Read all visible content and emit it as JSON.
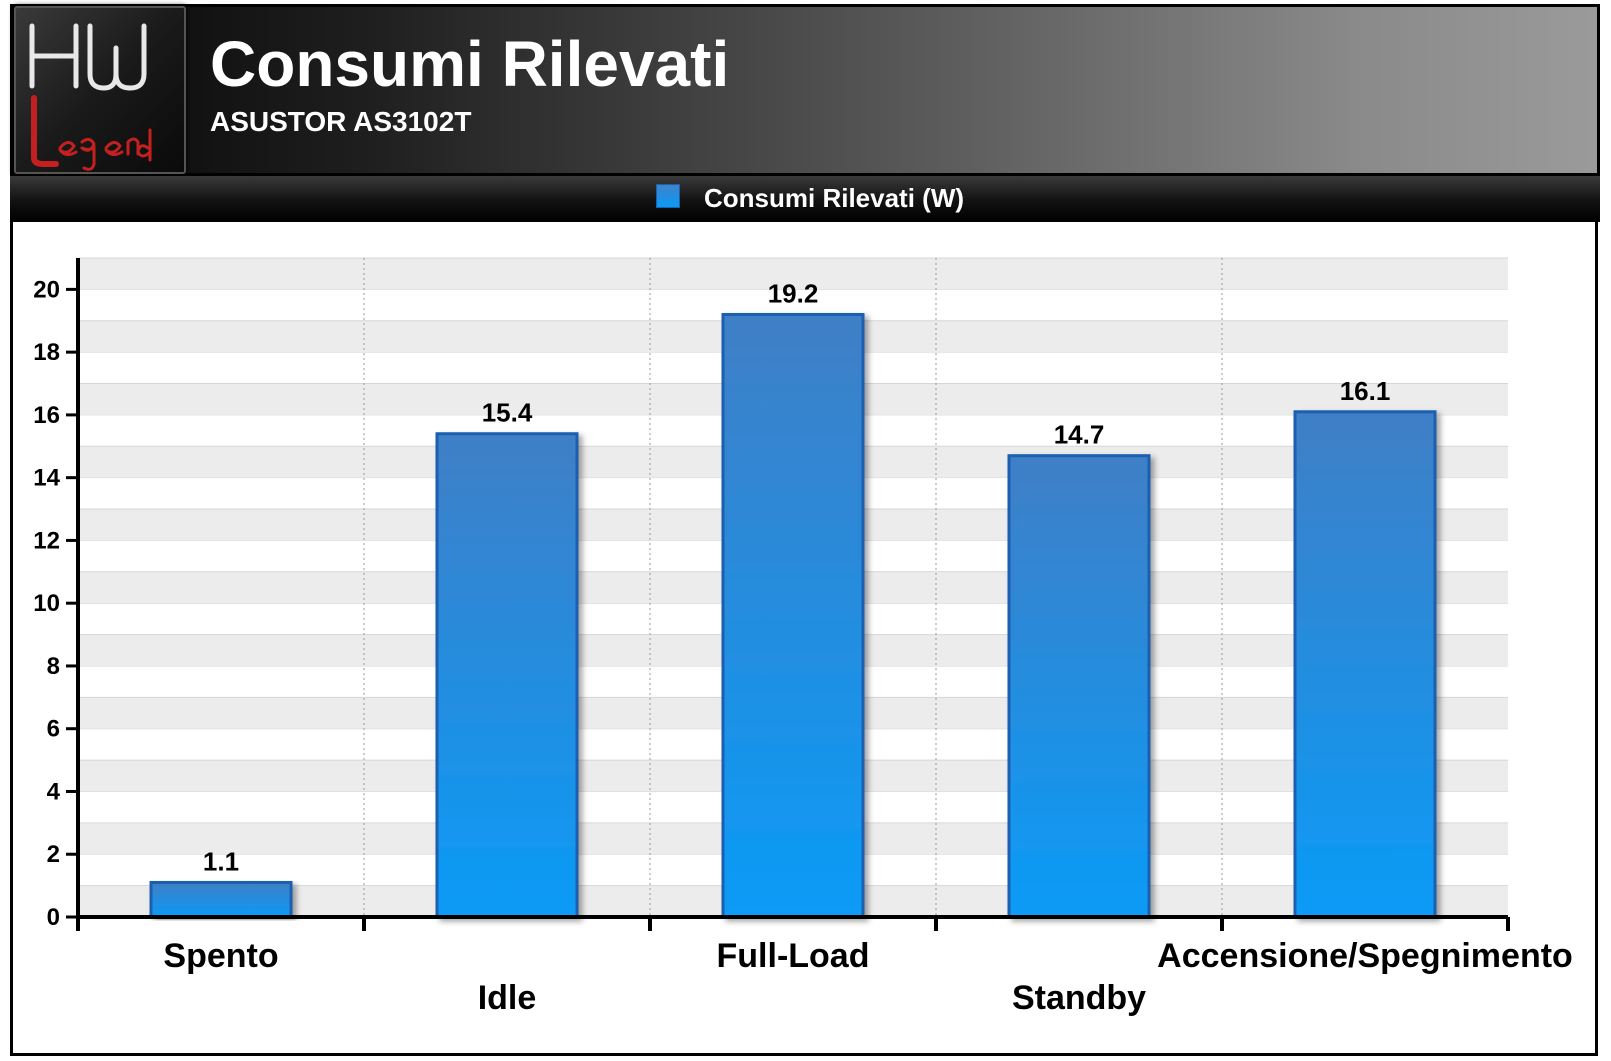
{
  "header": {
    "title": "Consumi Rilevati",
    "subtitle": "ASUSTOR AS3102T",
    "logo_text_top": "HW",
    "logo_text_bottom": "Legend"
  },
  "legend": {
    "label": "Consumi Rilevati (W)",
    "color": "#1a8fe8"
  },
  "colors": {
    "bar_top": "#3f7fc6",
    "bar_bottom": "#0a9bf7",
    "bar_border": "#1a5fb0",
    "band": "#ececec"
  },
  "chart_data": {
    "type": "bar",
    "categories": [
      "Spento",
      "Idle",
      "Full-Load",
      "Standby",
      "Accensione/Spegnimento"
    ],
    "series": [
      {
        "name": "Consumi Rilevati (W)",
        "values": [
          1.1,
          15.4,
          19.2,
          14.7,
          16.1
        ]
      }
    ],
    "value_labels": [
      "1.1",
      "15.4",
      "19.2",
      "14.7",
      "16.1"
    ],
    "ylim": [
      0,
      21
    ],
    "yticks": [
      0,
      2,
      4,
      6,
      8,
      10,
      12,
      14,
      16,
      18,
      20
    ],
    "title": "Consumi Rilevati",
    "subtitle": "ASUSTOR AS3102T",
    "xlabel": "",
    "ylabel": "",
    "legend_position": "top-center",
    "grid": true
  }
}
